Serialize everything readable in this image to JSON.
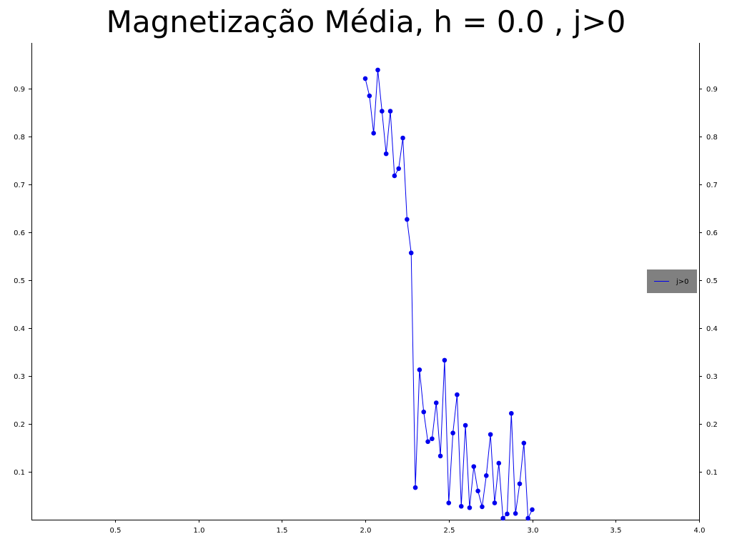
{
  "chart_data": {
    "type": "line",
    "title": "Magnetização Média, h = 0.0 , j>0",
    "xlabel": "",
    "ylabel": "",
    "xlim": [
      0.0,
      4.0
    ],
    "ylim": [
      0.0,
      1.0
    ],
    "x_ticks": [
      0.5,
      1.0,
      1.5,
      2.0,
      2.5,
      3.0,
      3.5,
      4.0
    ],
    "x_tick_labels": [
      "0.5",
      "1.0",
      "1.5",
      "2.0",
      "2.5",
      "3.0",
      "3.5",
      "4.0"
    ],
    "y_ticks": [
      0.1,
      0.2,
      0.3,
      0.4,
      0.5,
      0.6,
      0.7,
      0.8,
      0.9
    ],
    "y_tick_labels": [
      "0.1",
      "0.2",
      "0.3",
      "0.4",
      "0.5",
      "0.6",
      "0.7",
      "0.8",
      "0.9"
    ],
    "grid": false,
    "legend_position": "center-right",
    "series": [
      {
        "name": "j>0",
        "color": "#0000ee",
        "marker": "circle",
        "x": [
          2.0,
          2.025,
          2.05,
          2.075,
          2.1,
          2.125,
          2.15,
          2.175,
          2.2,
          2.225,
          2.25,
          2.275,
          2.3,
          2.325,
          2.35,
          2.375,
          2.4,
          2.425,
          2.45,
          2.475,
          2.5,
          2.525,
          2.55,
          2.575,
          2.6,
          2.625,
          2.65,
          2.675,
          2.7,
          2.725,
          2.75,
          2.775,
          2.8,
          2.825,
          2.85,
          2.875,
          2.9,
          2.925,
          2.95,
          2.975,
          3.0
        ],
        "y": [
          0.921,
          0.885,
          0.807,
          0.939,
          0.853,
          0.764,
          0.853,
          0.718,
          0.733,
          0.797,
          0.627,
          0.557,
          0.067,
          0.313,
          0.225,
          0.163,
          0.169,
          0.244,
          0.133,
          0.333,
          0.035,
          0.181,
          0.261,
          0.028,
          0.197,
          0.025,
          0.111,
          0.06,
          0.027,
          0.092,
          0.178,
          0.035,
          0.118,
          0.003,
          0.012,
          0.222,
          0.013,
          0.075,
          0.16,
          0.003,
          0.021
        ]
      }
    ]
  }
}
